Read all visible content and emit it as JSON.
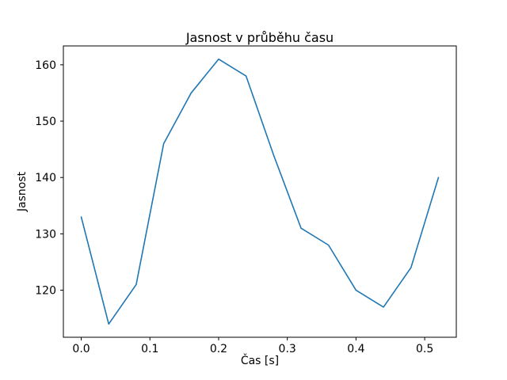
{
  "chart_data": {
    "type": "line",
    "title": "Jasnost v průběhu času",
    "xlabel": "Čas [s]",
    "ylabel": "Jasnost",
    "x": [
      0.0,
      0.04,
      0.08,
      0.12,
      0.16,
      0.2,
      0.24,
      0.28,
      0.32,
      0.36,
      0.4,
      0.44,
      0.48,
      0.52
    ],
    "y": [
      133,
      114,
      121,
      146,
      155,
      161,
      158,
      144,
      131,
      128,
      120,
      117,
      124,
      140
    ],
    "xlim": [
      -0.026,
      0.546
    ],
    "ylim": [
      111.65,
      163.35
    ],
    "xticks": [
      0.0,
      0.1,
      0.2,
      0.3,
      0.4,
      0.5
    ],
    "xtick_labels": [
      "0.0",
      "0.1",
      "0.2",
      "0.3",
      "0.4",
      "0.5"
    ],
    "yticks": [
      120,
      130,
      140,
      150,
      160
    ],
    "ytick_labels": [
      "120",
      "130",
      "140",
      "150",
      "160"
    ],
    "line_color": "#1f77b4",
    "axis_color": "#000000",
    "grid": false,
    "legend_position": "none"
  }
}
